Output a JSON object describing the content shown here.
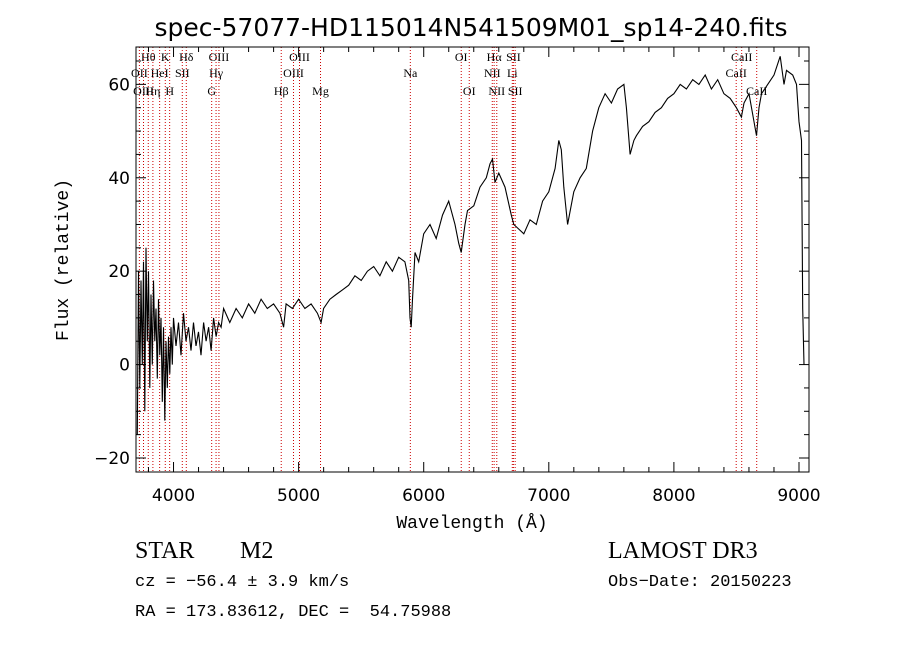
{
  "chart_data": {
    "type": "line",
    "title": "spec-57077-HD115014N541509M01_sp14-240.fits",
    "xlabel": "Wavelength (Å)",
    "ylabel": "Flux (relative)",
    "xlim": [
      3700,
      9080
    ],
    "ylim": [
      -23,
      68
    ],
    "xticks": [
      4000,
      5000,
      6000,
      7000,
      8000,
      9000
    ],
    "yticks": [
      -20,
      0,
      20,
      40,
      60
    ],
    "grid": false,
    "line_color": "#000000",
    "marker_color": "#cc0000",
    "series": [
      {
        "points": [
          [
            3710,
            -15
          ],
          [
            3720,
            20
          ],
          [
            3730,
            -5
          ],
          [
            3740,
            18
          ],
          [
            3750,
            0
          ],
          [
            3760,
            22
          ],
          [
            3770,
            -10
          ],
          [
            3780,
            25
          ],
          [
            3790,
            5
          ],
          [
            3800,
            20
          ],
          [
            3810,
            -5
          ],
          [
            3820,
            15
          ],
          [
            3830,
            0
          ],
          [
            3840,
            18
          ],
          [
            3850,
            5
          ],
          [
            3860,
            12
          ],
          [
            3870,
            -3
          ],
          [
            3880,
            14
          ],
          [
            3890,
            2
          ],
          [
            3900,
            10
          ],
          [
            3910,
            -8
          ],
          [
            3920,
            8
          ],
          [
            3930,
            -12
          ],
          [
            3940,
            5
          ],
          [
            3950,
            -5
          ],
          [
            3960,
            6
          ],
          [
            3970,
            -2
          ],
          [
            3980,
            8
          ],
          [
            3990,
            0
          ],
          [
            4000,
            10
          ],
          [
            4020,
            4
          ],
          [
            4040,
            9
          ],
          [
            4060,
            2
          ],
          [
            4080,
            11
          ],
          [
            4100,
            5
          ],
          [
            4120,
            8
          ],
          [
            4140,
            3
          ],
          [
            4160,
            9
          ],
          [
            4180,
            4
          ],
          [
            4200,
            7
          ],
          [
            4220,
            2
          ],
          [
            4240,
            9
          ],
          [
            4260,
            5
          ],
          [
            4280,
            8
          ],
          [
            4300,
            3
          ],
          [
            4320,
            10
          ],
          [
            4340,
            6
          ],
          [
            4360,
            9
          ],
          [
            4380,
            8
          ],
          [
            4400,
            12
          ],
          [
            4450,
            9
          ],
          [
            4500,
            12
          ],
          [
            4550,
            10
          ],
          [
            4600,
            13
          ],
          [
            4650,
            11
          ],
          [
            4700,
            14
          ],
          [
            4750,
            12
          ],
          [
            4800,
            13
          ],
          [
            4850,
            11
          ],
          [
            4880,
            8
          ],
          [
            4900,
            13
          ],
          [
            4950,
            12
          ],
          [
            5000,
            14
          ],
          [
            5050,
            12
          ],
          [
            5100,
            13
          ],
          [
            5150,
            11
          ],
          [
            5180,
            9
          ],
          [
            5200,
            12
          ],
          [
            5250,
            14
          ],
          [
            5300,
            15
          ],
          [
            5350,
            16
          ],
          [
            5400,
            17
          ],
          [
            5450,
            19
          ],
          [
            5500,
            18
          ],
          [
            5550,
            20
          ],
          [
            5600,
            21
          ],
          [
            5650,
            19
          ],
          [
            5700,
            22
          ],
          [
            5750,
            20
          ],
          [
            5800,
            23
          ],
          [
            5850,
            22
          ],
          [
            5880,
            18
          ],
          [
            5890,
            10
          ],
          [
            5900,
            8
          ],
          [
            5910,
            14
          ],
          [
            5930,
            24
          ],
          [
            5960,
            22
          ],
          [
            6000,
            28
          ],
          [
            6050,
            30
          ],
          [
            6100,
            27
          ],
          [
            6150,
            32
          ],
          [
            6200,
            35
          ],
          [
            6250,
            30
          ],
          [
            6280,
            26
          ],
          [
            6300,
            24
          ],
          [
            6330,
            30
          ],
          [
            6350,
            33
          ],
          [
            6400,
            34
          ],
          [
            6450,
            38
          ],
          [
            6500,
            40
          ],
          [
            6530,
            43
          ],
          [
            6550,
            44
          ],
          [
            6570,
            39
          ],
          [
            6600,
            41
          ],
          [
            6650,
            38
          ],
          [
            6700,
            32
          ],
          [
            6720,
            30
          ],
          [
            6760,
            29
          ],
          [
            6800,
            28
          ],
          [
            6850,
            31
          ],
          [
            6900,
            30
          ],
          [
            6950,
            35
          ],
          [
            7000,
            37
          ],
          [
            7050,
            42
          ],
          [
            7080,
            48
          ],
          [
            7100,
            46
          ],
          [
            7120,
            38
          ],
          [
            7150,
            30
          ],
          [
            7200,
            37
          ],
          [
            7250,
            40
          ],
          [
            7300,
            42
          ],
          [
            7350,
            50
          ],
          [
            7400,
            55
          ],
          [
            7450,
            58
          ],
          [
            7500,
            56
          ],
          [
            7550,
            59
          ],
          [
            7600,
            60
          ],
          [
            7620,
            55
          ],
          [
            7650,
            45
          ],
          [
            7680,
            48
          ],
          [
            7700,
            49
          ],
          [
            7750,
            51
          ],
          [
            7800,
            52
          ],
          [
            7850,
            54
          ],
          [
            7900,
            55
          ],
          [
            7950,
            57
          ],
          [
            8000,
            58
          ],
          [
            8050,
            60
          ],
          [
            8100,
            59
          ],
          [
            8150,
            61
          ],
          [
            8200,
            60
          ],
          [
            8250,
            62
          ],
          [
            8300,
            59
          ],
          [
            8350,
            61
          ],
          [
            8400,
            58
          ],
          [
            8450,
            57
          ],
          [
            8500,
            55
          ],
          [
            8540,
            53
          ],
          [
            8560,
            56
          ],
          [
            8600,
            58
          ],
          [
            8640,
            52
          ],
          [
            8660,
            49
          ],
          [
            8680,
            55
          ],
          [
            8700,
            58
          ],
          [
            8750,
            60
          ],
          [
            8800,
            62
          ],
          [
            8850,
            66
          ],
          [
            8880,
            60
          ],
          [
            8900,
            63
          ],
          [
            8950,
            62
          ],
          [
            8980,
            60
          ],
          [
            9000,
            52
          ],
          [
            9020,
            48
          ],
          [
            9030,
            12
          ],
          [
            9040,
            0
          ]
        ]
      }
    ],
    "line_markers": [
      {
        "label": "Hθ",
        "wavelength": 3798,
        "row": 1
      },
      {
        "label": "OII",
        "wavelength": 3727,
        "row": 2
      },
      {
        "label": "OIII",
        "wavelength": 3760,
        "row": 3
      },
      {
        "label": "K",
        "wavelength": 3934,
        "row": 1
      },
      {
        "label": "HeI",
        "wavelength": 3889,
        "row": 2
      },
      {
        "label": "Hη",
        "wavelength": 3835,
        "row": 3
      },
      {
        "label": "H",
        "wavelength": 3969,
        "row": 3
      },
      {
        "label": "Hδ",
        "wavelength": 4102,
        "row": 1
      },
      {
        "label": "SII",
        "wavelength": 4070,
        "row": 2
      },
      {
        "label": "OIII",
        "wavelength": 4363,
        "row": 1
      },
      {
        "label": "Hγ",
        "wavelength": 4340,
        "row": 2
      },
      {
        "label": "G",
        "wavelength": 4305,
        "row": 3
      },
      {
        "label": "Hβ",
        "wavelength": 4861,
        "row": 3
      },
      {
        "label": "OIII",
        "wavelength": 5007,
        "row": 1
      },
      {
        "label": "OIII",
        "wavelength": 4959,
        "row": 2
      },
      {
        "label": "Mg",
        "wavelength": 5175,
        "row": 3
      },
      {
        "label": "Na",
        "wavelength": 5893,
        "row": 2
      },
      {
        "label": "OI",
        "wavelength": 6300,
        "row": 1
      },
      {
        "label": "OI",
        "wavelength": 6364,
        "row": 3
      },
      {
        "label": "Hα",
        "wavelength": 6563,
        "row": 1
      },
      {
        "label": "SII",
        "wavelength": 6717,
        "row": 1
      },
      {
        "label": "NII",
        "wavelength": 6548,
        "row": 2
      },
      {
        "label": "Li",
        "wavelength": 6708,
        "row": 2
      },
      {
        "label": "NII",
        "wavelength": 6584,
        "row": 3
      },
      {
        "label": "SII",
        "wavelength": 6731,
        "row": 3
      },
      {
        "label": "CaII",
        "wavelength": 8542,
        "row": 1
      },
      {
        "label": "CaII",
        "wavelength": 8498,
        "row": 2
      },
      {
        "label": "CaII",
        "wavelength": 8662,
        "row": 3
      }
    ]
  },
  "info": {
    "object_class": "STAR",
    "subclass": "M2",
    "survey": "LAMOST DR3",
    "redshift": "cz = −56.4 ± 3.9 km/s",
    "obs_date": "Obs−Date: 20150223",
    "coords": "RA = 173.83612, DEC =  54.75988"
  }
}
